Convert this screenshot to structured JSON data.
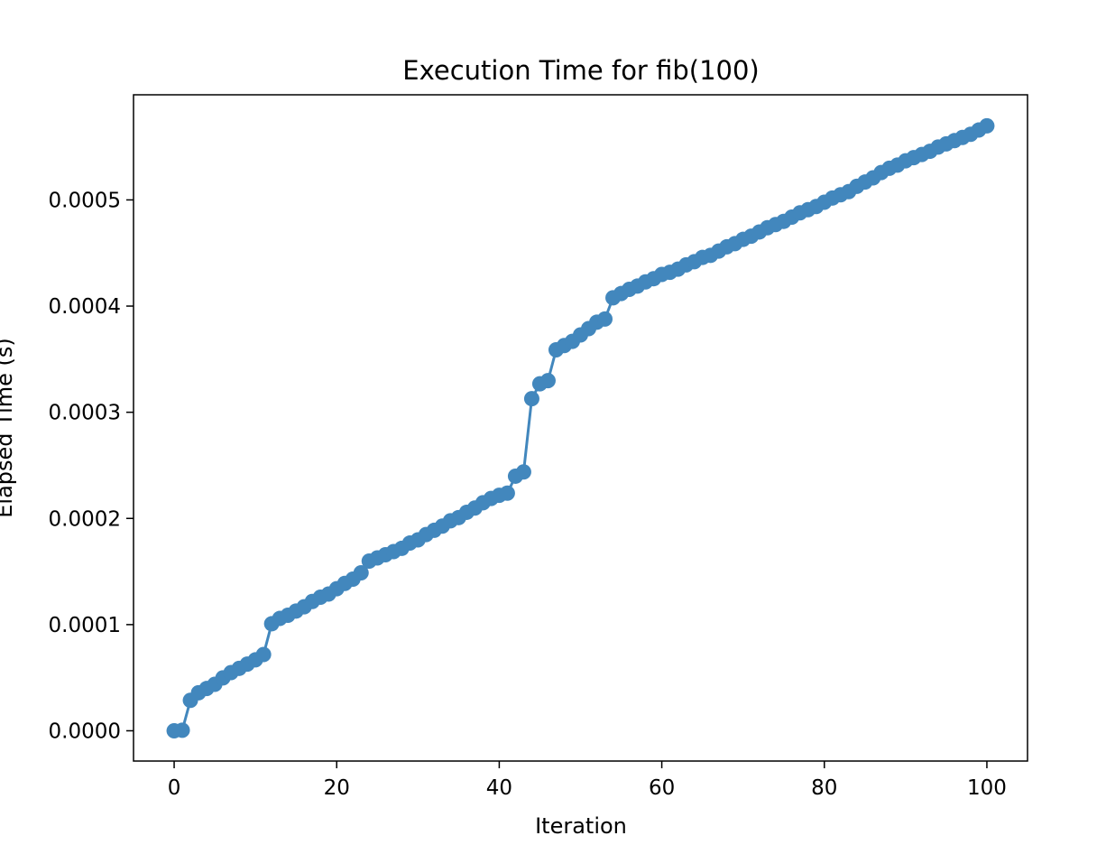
{
  "chart_data": {
    "type": "line",
    "title": "Execution Time for fib(100)",
    "xlabel": "Iteration",
    "ylabel": "Elapsed Time (s)",
    "xlim": [
      -5,
      105
    ],
    "ylim": [
      -2.85e-05,
      0.000599
    ],
    "x_ticks": [
      0,
      20,
      40,
      60,
      80,
      100
    ],
    "x_tick_labels": [
      "0",
      "20",
      "40",
      "60",
      "80",
      "100"
    ],
    "y_ticks": [
      0,
      0.0001,
      0.0002,
      0.0003,
      0.0004,
      0.0005
    ],
    "y_tick_labels": [
      "0.0000",
      "0.0001",
      "0.0002",
      "0.0003",
      "0.0004",
      "0.0005"
    ],
    "grid": false,
    "legend": "none",
    "series": [
      {
        "color": "#4287bd",
        "marker": "circle",
        "x": [
          0,
          1,
          2,
          3,
          4,
          5,
          6,
          7,
          8,
          9,
          10,
          11,
          12,
          13,
          14,
          15,
          16,
          17,
          18,
          19,
          20,
          21,
          22,
          23,
          24,
          25,
          26,
          27,
          28,
          29,
          30,
          31,
          32,
          33,
          34,
          35,
          36,
          37,
          38,
          39,
          40,
          41,
          42,
          43,
          44,
          45,
          46,
          47,
          48,
          49,
          50,
          51,
          52,
          53,
          54,
          55,
          56,
          57,
          58,
          59,
          60,
          61,
          62,
          63,
          64,
          65,
          66,
          67,
          68,
          69,
          70,
          71,
          72,
          73,
          74,
          75,
          76,
          77,
          78,
          79,
          80,
          81,
          82,
          83,
          84,
          85,
          86,
          87,
          88,
          89,
          90,
          91,
          92,
          93,
          94,
          95,
          96,
          97,
          98,
          99,
          100
        ],
        "y": [
          0.0,
          5e-07,
          2.87e-05,
          3.58e-05,
          3.98e-05,
          4.38e-05,
          4.98e-05,
          5.48e-05,
          5.88e-05,
          6.28e-05,
          6.68e-05,
          7.18e-05,
          0.0001008,
          0.0001058,
          0.0001088,
          0.0001128,
          0.0001168,
          0.0001218,
          0.0001258,
          0.0001288,
          0.0001338,
          0.0001388,
          0.0001428,
          0.0001488,
          0.0001598,
          0.0001628,
          0.0001658,
          0.0001688,
          0.0001718,
          0.0001768,
          0.0001798,
          0.0001848,
          0.0001888,
          0.0001928,
          0.0001978,
          0.0002008,
          0.0002058,
          0.0002098,
          0.0002148,
          0.0002188,
          0.0002218,
          0.0002238,
          0.0002398,
          0.0002438,
          0.0003128,
          0.0003268,
          0.0003298,
          0.0003588,
          0.0003628,
          0.0003668,
          0.0003728,
          0.0003788,
          0.0003848,
          0.0003878,
          0.0004078,
          0.0004118,
          0.0004158,
          0.0004188,
          0.0004228,
          0.0004258,
          0.0004298,
          0.0004318,
          0.0004348,
          0.0004388,
          0.0004418,
          0.0004458,
          0.0004478,
          0.0004518,
          0.0004558,
          0.0004588,
          0.0004628,
          0.0004658,
          0.0004698,
          0.0004738,
          0.0004768,
          0.0004798,
          0.0004838,
          0.0004878,
          0.0004908,
          0.0004938,
          0.0004978,
          0.0005018,
          0.0005048,
          0.0005078,
          0.0005128,
          0.0005168,
          0.0005208,
          0.0005258,
          0.0005298,
          0.0005328,
          0.0005368,
          0.0005398,
          0.0005428,
          0.0005458,
          0.0005498,
          0.0005528,
          0.0005558,
          0.0005588,
          0.0005618,
          0.0005658,
          0.0005698
        ]
      }
    ]
  }
}
